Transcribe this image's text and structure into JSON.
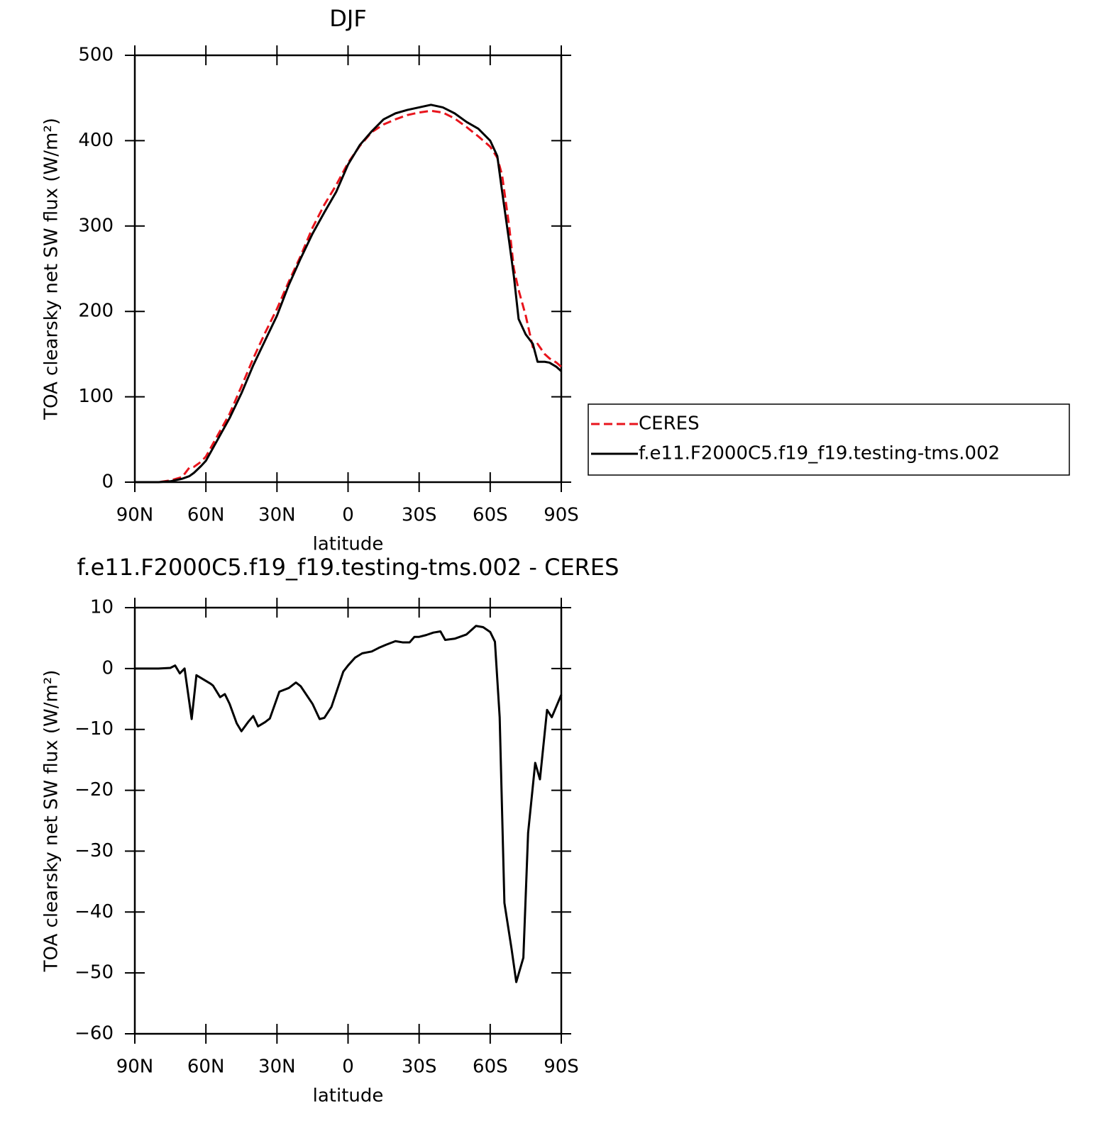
{
  "chart_data": [
    {
      "type": "line",
      "title": "DJF",
      "xlabel": "latitude",
      "ylabel": "TOA clearsky net SW flux (W/m²)",
      "x": [
        90,
        85,
        80,
        75,
        70,
        67,
        65,
        62,
        60,
        55,
        50,
        45,
        40,
        35,
        30,
        25,
        20,
        15,
        10,
        5,
        0,
        -5,
        -10,
        -15,
        -20,
        -25,
        -30,
        -35,
        -40,
        -45,
        -50,
        -55,
        -60,
        -63,
        -65,
        -68,
        -70,
        -72,
        -75,
        -78,
        -80,
        -83,
        -85,
        -88,
        -90
      ],
      "series": [
        {
          "name": "CERES",
          "color": "#e8141c",
          "dashed": true,
          "values": [
            0,
            0,
            0,
            2,
            6,
            17,
            18,
            24,
            30,
            55,
            80,
            112,
            145,
            175,
            203,
            235,
            265,
            298,
            325,
            348,
            374,
            394,
            410,
            419,
            425,
            430,
            433,
            435,
            433,
            426,
            416,
            405,
            393,
            380,
            360,
            300,
            250,
            225,
            195,
            158,
            162,
            150,
            145,
            140,
            135
          ]
        },
        {
          "name": "f.e11.F2000C5.f19_f19.testing-tms.002",
          "color": "#000000",
          "dashed": false,
          "values": [
            0,
            0,
            0,
            1,
            4,
            7,
            11,
            19,
            25,
            50,
            75,
            104,
            137,
            166,
            195,
            231,
            262,
            291,
            316,
            340,
            372,
            395,
            411,
            425,
            432,
            436,
            439,
            442,
            439,
            432,
            422,
            414,
            400,
            382,
            341,
            282,
            241,
            191,
            173,
            162,
            141,
            141,
            140,
            135,
            130
          ]
        }
      ],
      "xlim": [
        90,
        -90
      ],
      "xticks": [
        {
          "value": 90,
          "label": "90N"
        },
        {
          "value": 60,
          "label": "60N"
        },
        {
          "value": 30,
          "label": "30N"
        },
        0,
        {
          "value": -30,
          "label": "30S"
        },
        {
          "value": -60,
          "label": "60S"
        },
        {
          "value": -90,
          "label": "90S"
        }
      ],
      "ylim": [
        0,
        500
      ],
      "yticks": [
        0,
        100,
        200,
        300,
        400,
        500
      ],
      "grid": false,
      "legend": "right"
    },
    {
      "type": "line",
      "title": "f.e11.F2000C5.f19_f19.testing-tms.002 - CERES",
      "xlabel": "latitude",
      "ylabel": "TOA clearsky net SW flux (W/m²)",
      "x": [
        90,
        85,
        80,
        75,
        73,
        71,
        69,
        66,
        64,
        61,
        58,
        57,
        54,
        52,
        50,
        47,
        45,
        42,
        40,
        38,
        35,
        33,
        29,
        25,
        22,
        20,
        15,
        12,
        10,
        7,
        2,
        0,
        -3,
        -6,
        -10,
        -13,
        -16,
        -20,
        -23,
        -26,
        -28,
        -30,
        -33,
        -36,
        -39,
        -41,
        -45,
        -50,
        -54,
        -57,
        -60,
        -62,
        -64,
        -66,
        -69,
        -71,
        -74,
        -76,
        -79,
        -81,
        -84,
        -86,
        -90
      ],
      "series": [
        {
          "name": "f.e11.F2000C5.f19_f19.testing-tms.002",
          "color": "#000000",
          "dashed": false,
          "values": [
            0,
            0,
            0,
            0.1,
            0.5,
            -0.8,
            0,
            -8.3,
            -1.1,
            -1.8,
            -2.5,
            -2.8,
            -4.7,
            -4.2,
            -5.8,
            -9,
            -10.3,
            -8.7,
            -7.8,
            -9.5,
            -8.8,
            -8.2,
            -3.8,
            -3.2,
            -2.3,
            -2.9,
            -5.8,
            -8.3,
            -8.1,
            -6.3,
            -0.5,
            0.5,
            1.8,
            2.5,
            2.8,
            3.4,
            3.9,
            4.5,
            4.3,
            4.3,
            5.2,
            5.2,
            5.5,
            5.9,
            6.1,
            4.7,
            4.9,
            5.6,
            7,
            6.8,
            6,
            4.4,
            -8,
            -38.5,
            -46,
            -51.5,
            -47.5,
            -27,
            -15.5,
            -18.2,
            -6.8,
            -8,
            -4.3
          ]
        }
      ],
      "xlim": [
        90,
        -90
      ],
      "xticks": [
        {
          "value": 90,
          "label": "90N"
        },
        {
          "value": 60,
          "label": "60N"
        },
        {
          "value": 30,
          "label": "30N"
        },
        0,
        {
          "value": -30,
          "label": "30S"
        },
        {
          "value": -60,
          "label": "60S"
        },
        {
          "value": -90,
          "label": "90S"
        }
      ],
      "ylim": [
        -60,
        10
      ],
      "yticks": [
        {
          "value": -60,
          "label": "−60"
        },
        {
          "value": -50,
          "label": "−50"
        },
        {
          "value": -40,
          "label": "−40"
        },
        {
          "value": -30,
          "label": "−30"
        },
        {
          "value": -20,
          "label": "−20"
        },
        {
          "value": -10,
          "label": "−10"
        },
        0,
        10
      ],
      "grid": false
    }
  ]
}
